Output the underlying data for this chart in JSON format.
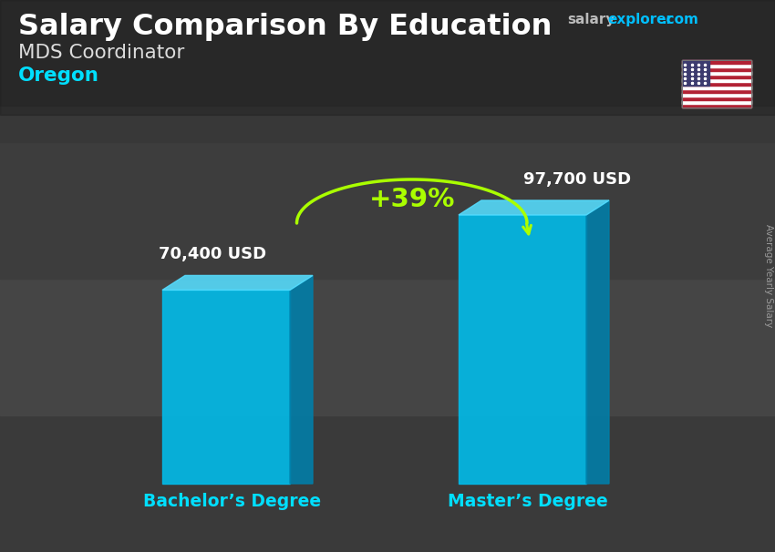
{
  "title_main": "Salary Comparison By Education",
  "title_sub": "MDS Coordinator",
  "title_location": "Oregon",
  "ylabel": "Average Yearly Salary",
  "categories": [
    "Bachelor’s Degree",
    "Master’s Degree"
  ],
  "values": [
    70400,
    97700
  ],
  "value_labels": [
    "70,400 USD",
    "97,700 USD"
  ],
  "pct_change": "+39%",
  "bar_face_color": "#00BFEE",
  "bar_top_color": "#55DDFF",
  "bar_side_color": "#007FAA",
  "bg_color": "#3a3a3a",
  "title_color": "#ffffff",
  "subtitle_color": "#dddddd",
  "location_color": "#00DFFF",
  "value_label_color": "#ffffff",
  "category_label_color": "#00DFFF",
  "pct_color": "#AAFF00",
  "arrow_color": "#AAFF00",
  "watermark_salary_color": "#aaaaaa",
  "watermark_explorer_color": "#00BFFF",
  "watermark_com_color": "#00BFFF",
  "figsize": [
    8.5,
    6.06
  ],
  "dpi": 100
}
